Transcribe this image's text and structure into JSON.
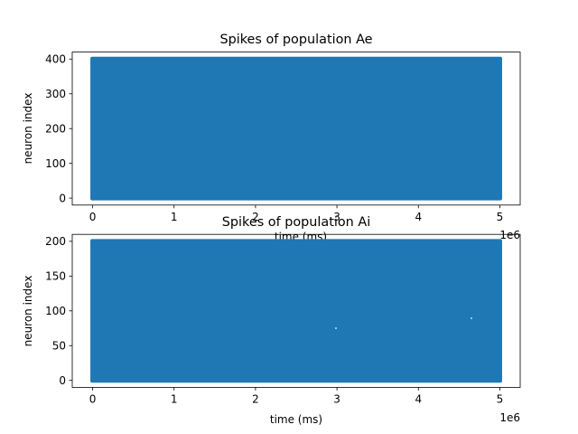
{
  "chart_data": [
    {
      "type": "scatter",
      "title": "Spikes of population Ae",
      "xlabel": "time (ms)",
      "ylabel": "neuron index",
      "xlim": [
        -250000,
        5250000
      ],
      "ylim": [
        -20,
        420
      ],
      "x_ticks": [
        0,
        1,
        2,
        3,
        4,
        5
      ],
      "x_tick_labels": [
        "0",
        "1",
        "2",
        "3",
        "4",
        "5"
      ],
      "x_offset_label": "1e6",
      "y_ticks": [
        0,
        100,
        200,
        300,
        400
      ],
      "y_tick_labels": [
        "0",
        "100",
        "200",
        "300",
        "400"
      ],
      "grid": false,
      "series": [
        {
          "color": "#1f77b4",
          "x_range": [
            0,
            5000000
          ],
          "y_range": [
            0,
            400
          ]
        }
      ]
    },
    {
      "type": "scatter",
      "title": "Spikes of population Ai",
      "xlabel": "time (ms)",
      "ylabel": "neuron index",
      "xlim": [
        -250000,
        5250000
      ],
      "ylim": [
        -10,
        210
      ],
      "x_ticks": [
        0,
        1,
        2,
        3,
        4,
        5
      ],
      "x_tick_labels": [
        "0",
        "1",
        "2",
        "3",
        "4",
        "5"
      ],
      "x_offset_label": "1e6",
      "y_ticks": [
        0,
        50,
        100,
        150,
        200
      ],
      "y_tick_labels": [
        "0",
        "50",
        "100",
        "150",
        "200"
      ],
      "grid": false,
      "series": [
        {
          "color": "#1f77b4",
          "x_range": [
            0,
            5000000
          ],
          "y_range": [
            0,
            200
          ]
        }
      ]
    }
  ]
}
